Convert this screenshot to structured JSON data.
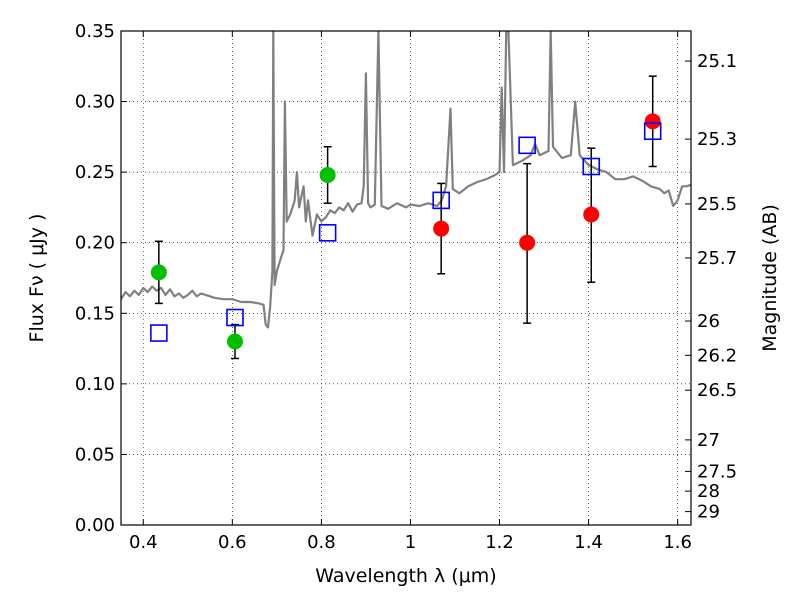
{
  "chart_data": {
    "type": "scatter",
    "xlabel": "Wavelength  λ (μm)",
    "ylabel": "Flux  Fν  ( μJy )",
    "ylabel_right": "Magnitude (AB)",
    "xlim": [
      0.35,
      1.63
    ],
    "ylim": [
      0.0,
      0.35
    ],
    "grid": true,
    "x_ticks": [
      {
        "value": 0.4,
        "label": "0.4"
      },
      {
        "value": 0.6,
        "label": "0.6"
      },
      {
        "value": 0.8,
        "label": "0.8"
      },
      {
        "value": 1.0,
        "label": "1"
      },
      {
        "value": 1.2,
        "label": "1.2"
      },
      {
        "value": 1.4,
        "label": "1.4"
      },
      {
        "value": 1.6,
        "label": "1.6"
      }
    ],
    "y_ticks": [
      {
        "value": 0.0,
        "label": "0.00"
      },
      {
        "value": 0.05,
        "label": "0.05"
      },
      {
        "value": 0.1,
        "label": "0.10"
      },
      {
        "value": 0.15,
        "label": "0.15"
      },
      {
        "value": 0.2,
        "label": "0.20"
      },
      {
        "value": 0.25,
        "label": "0.25"
      },
      {
        "value": 0.3,
        "label": "0.30"
      },
      {
        "value": 0.35,
        "label": "0.35"
      }
    ],
    "mag_ticks": [
      {
        "flux": 0.3287,
        "label": "25.1"
      },
      {
        "flux": 0.2734,
        "label": "25.3"
      },
      {
        "flux": 0.2275,
        "label": "25.5"
      },
      {
        "flux": 0.1892,
        "label": "25.7"
      },
      {
        "flux": 0.1445,
        "label": "26"
      },
      {
        "flux": 0.1202,
        "label": "26.2"
      },
      {
        "flux": 0.0955,
        "label": "26.5"
      },
      {
        "flux": 0.0603,
        "label": "27"
      },
      {
        "flux": 0.038,
        "label": "27.5"
      },
      {
        "flux": 0.024,
        "label": "28"
      },
      {
        "flux": 0.0095,
        "label": "29"
      }
    ],
    "series": [
      {
        "type": "scatter_errorbar",
        "color": "#00c000",
        "marker": "circle",
        "points": [
          {
            "x": 0.435,
            "y": 0.179,
            "err_low": 0.022,
            "err_high": 0.022
          },
          {
            "x": 0.606,
            "y": 0.13,
            "err_low": 0.012,
            "err_high": 0.012
          },
          {
            "x": 0.814,
            "y": 0.248,
            "err_low": 0.02,
            "err_high": 0.02
          }
        ]
      },
      {
        "type": "scatter_errorbar",
        "color": "#ff0000",
        "marker": "circle",
        "points": [
          {
            "x": 1.069,
            "y": 0.21,
            "err_low": 0.032,
            "err_high": 0.032
          },
          {
            "x": 1.262,
            "y": 0.2,
            "err_low": 0.057,
            "err_high": 0.056
          },
          {
            "x": 1.406,
            "y": 0.22,
            "err_low": 0.048,
            "err_high": 0.047
          },
          {
            "x": 1.544,
            "y": 0.286,
            "err_low": 0.032,
            "err_high": 0.032
          }
        ]
      },
      {
        "type": "scatter",
        "color": "#0000ff",
        "marker": "square",
        "points": [
          {
            "x": 0.435,
            "y": 0.136
          },
          {
            "x": 0.606,
            "y": 0.147
          },
          {
            "x": 0.814,
            "y": 0.207
          },
          {
            "x": 1.069,
            "y": 0.23
          },
          {
            "x": 1.262,
            "y": 0.269
          },
          {
            "x": 1.406,
            "y": 0.254
          },
          {
            "x": 1.544,
            "y": 0.279
          }
        ]
      },
      {
        "type": "line",
        "color": "#808080",
        "points": [
          [
            0.35,
            0.16
          ],
          [
            0.36,
            0.165
          ],
          [
            0.37,
            0.162
          ],
          [
            0.38,
            0.166
          ],
          [
            0.39,
            0.163
          ],
          [
            0.4,
            0.168
          ],
          [
            0.41,
            0.165
          ],
          [
            0.42,
            0.169
          ],
          [
            0.43,
            0.166
          ],
          [
            0.44,
            0.168
          ],
          [
            0.45,
            0.163
          ],
          [
            0.46,
            0.167
          ],
          [
            0.47,
            0.162
          ],
          [
            0.48,
            0.164
          ],
          [
            0.49,
            0.161
          ],
          [
            0.5,
            0.163
          ],
          [
            0.51,
            0.166
          ],
          [
            0.52,
            0.162
          ],
          [
            0.53,
            0.164
          ],
          [
            0.54,
            0.163
          ],
          [
            0.55,
            0.162
          ],
          [
            0.56,
            0.161
          ],
          [
            0.58,
            0.16
          ],
          [
            0.6,
            0.16
          ],
          [
            0.62,
            0.158
          ],
          [
            0.64,
            0.158
          ],
          [
            0.66,
            0.157
          ],
          [
            0.67,
            0.156
          ],
          [
            0.675,
            0.142
          ],
          [
            0.68,
            0.14
          ],
          [
            0.685,
            0.155
          ],
          [
            0.69,
            0.18
          ],
          [
            0.692,
            0.35
          ],
          [
            0.695,
            0.17
          ],
          [
            0.7,
            0.18
          ],
          [
            0.71,
            0.19
          ],
          [
            0.715,
            0.195
          ],
          [
            0.718,
            0.3
          ],
          [
            0.722,
            0.215
          ],
          [
            0.73,
            0.22
          ],
          [
            0.74,
            0.23
          ],
          [
            0.745,
            0.25
          ],
          [
            0.75,
            0.225
          ],
          [
            0.76,
            0.24
          ],
          [
            0.765,
            0.215
          ],
          [
            0.77,
            0.23
          ],
          [
            0.78,
            0.205
          ],
          [
            0.79,
            0.22
          ],
          [
            0.8,
            0.215
          ],
          [
            0.81,
            0.218
          ],
          [
            0.82,
            0.223
          ],
          [
            0.83,
            0.221
          ],
          [
            0.84,
            0.225
          ],
          [
            0.85,
            0.223
          ],
          [
            0.86,
            0.228
          ],
          [
            0.87,
            0.222
          ],
          [
            0.88,
            0.227
          ],
          [
            0.89,
            0.228
          ],
          [
            0.895,
            0.24
          ],
          [
            0.9,
            0.32
          ],
          [
            0.905,
            0.228
          ],
          [
            0.91,
            0.225
          ],
          [
            0.92,
            0.227
          ],
          [
            0.928,
            0.35
          ],
          [
            0.935,
            0.226
          ],
          [
            0.95,
            0.224
          ],
          [
            0.97,
            0.228
          ],
          [
            0.99,
            0.225
          ],
          [
            1.0,
            0.227
          ],
          [
            1.02,
            0.226
          ],
          [
            1.04,
            0.228
          ],
          [
            1.06,
            0.226
          ],
          [
            1.07,
            0.23
          ],
          [
            1.08,
            0.24
          ],
          [
            1.09,
            0.295
          ],
          [
            1.095,
            0.238
          ],
          [
            1.11,
            0.235
          ],
          [
            1.13,
            0.24
          ],
          [
            1.15,
            0.243
          ],
          [
            1.17,
            0.245
          ],
          [
            1.19,
            0.248
          ],
          [
            1.2,
            0.25
          ],
          [
            1.205,
            0.31
          ],
          [
            1.21,
            0.25
          ],
          [
            1.215,
            0.35
          ],
          [
            1.22,
            0.35
          ],
          [
            1.23,
            0.255
          ],
          [
            1.25,
            0.258
          ],
          [
            1.27,
            0.262
          ],
          [
            1.28,
            0.27
          ],
          [
            1.29,
            0.262
          ],
          [
            1.31,
            0.265
          ],
          [
            1.315,
            0.35
          ],
          [
            1.32,
            0.268
          ],
          [
            1.34,
            0.26
          ],
          [
            1.36,
            0.262
          ],
          [
            1.37,
            0.3
          ],
          [
            1.38,
            0.262
          ],
          [
            1.4,
            0.255
          ],
          [
            1.42,
            0.252
          ],
          [
            1.44,
            0.25
          ],
          [
            1.46,
            0.245
          ],
          [
            1.48,
            0.245
          ],
          [
            1.5,
            0.247
          ],
          [
            1.52,
            0.244
          ],
          [
            1.54,
            0.24
          ],
          [
            1.56,
            0.238
          ],
          [
            1.57,
            0.235
          ],
          [
            1.58,
            0.237
          ],
          [
            1.59,
            0.226
          ],
          [
            1.6,
            0.23
          ],
          [
            1.61,
            0.24
          ],
          [
            1.62,
            0.24
          ],
          [
            1.63,
            0.241
          ]
        ]
      }
    ]
  }
}
